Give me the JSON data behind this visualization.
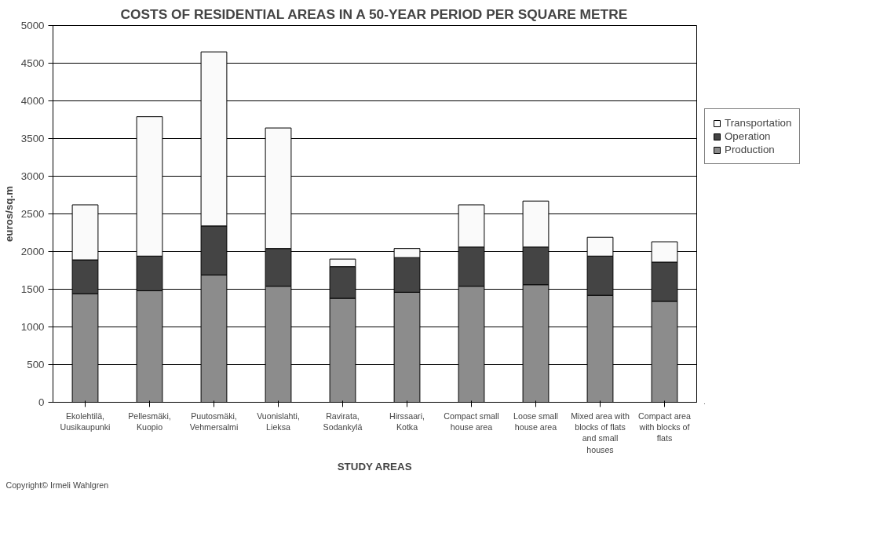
{
  "chart_data": {
    "type": "bar",
    "stacked": true,
    "title": "COSTS OF RESIDENTIAL AREAS IN A 50-YEAR PERIOD PER SQUARE METRE",
    "xlabel": "STUDY AREAS",
    "ylabel": "euros/sq.m",
    "categories": [
      "Ekolehtilä, Uusikaupunki",
      "Pellesmäki, Kuopio",
      "Puutosmäki, Vehmersalmi",
      "Vuonislahti, Lieksa",
      "Ravirata, Sodankylä",
      "Hirssaari, Kotka",
      "Compact small house area",
      "Loose small house area",
      "Mixed area with blocks of flats and small houses",
      "Compact area with blocks of flats"
    ],
    "series": [
      {
        "name": "Production",
        "color": "#8c8c8c",
        "values": [
          1440,
          1480,
          1690,
          1540,
          1380,
          1460,
          1540,
          1560,
          1420,
          1340
        ]
      },
      {
        "name": "Operation",
        "color": "#444444",
        "values": [
          450,
          460,
          650,
          500,
          420,
          460,
          520,
          500,
          520,
          520
        ]
      },
      {
        "name": "Transportation",
        "color": "#fafafa",
        "values": [
          730,
          1850,
          2310,
          1600,
          100,
          120,
          560,
          610,
          250,
          270
        ]
      }
    ],
    "ylim": [
      0,
      5000
    ],
    "yticks": [
      0,
      500,
      1000,
      1500,
      2000,
      2500,
      3000,
      3500,
      4000,
      4500,
      5000
    ],
    "grid": "y",
    "legend": "right",
    "annotations": [
      "Copyright© Irmeli Wahlgren"
    ]
  }
}
